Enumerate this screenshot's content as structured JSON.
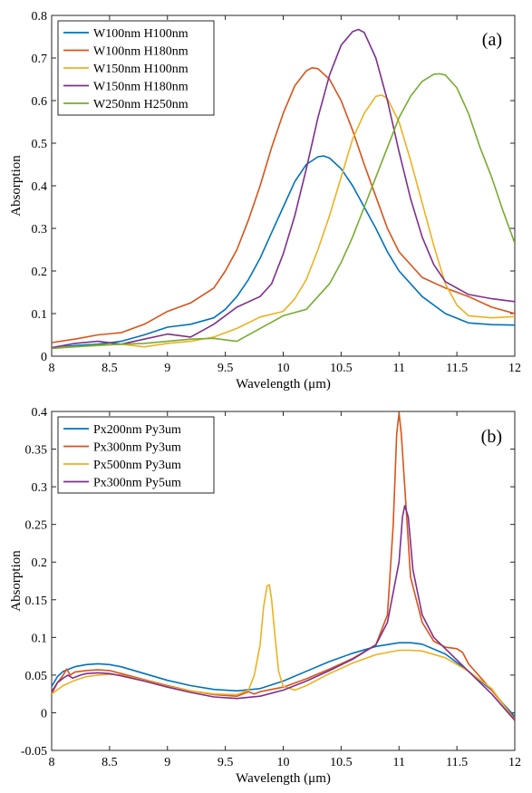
{
  "chart_data": [
    {
      "type": "line",
      "panel_label": "(a)",
      "xlabel": "Wavelength (μm)",
      "ylabel": "Absorption",
      "xlim": [
        8,
        12
      ],
      "ylim": [
        0,
        0.8
      ],
      "xticks": [
        8,
        8.5,
        9,
        9.5,
        10,
        10.5,
        11,
        11.5,
        12
      ],
      "xtick_labels": [
        "8",
        "8.5",
        "9",
        "9.5",
        "10",
        "10.5",
        "11",
        "11.5",
        "12"
      ],
      "yticks": [
        0,
        0.1,
        0.2,
        0.3,
        0.4,
        0.5,
        0.6,
        0.7,
        0.8
      ],
      "ytick_labels": [
        "0",
        "0.1",
        "0.2",
        "0.3",
        "0.4",
        "0.5",
        "0.6",
        "0.7",
        "0.8"
      ],
      "legend_position": "top-left",
      "grid": false,
      "series": [
        {
          "name": "W100nm H100nm",
          "color": "#0072BD",
          "x": [
            8.0,
            8.2,
            8.4,
            8.6,
            8.8,
            9.0,
            9.2,
            9.4,
            9.5,
            9.6,
            9.7,
            9.8,
            9.9,
            10.0,
            10.1,
            10.2,
            10.3,
            10.35,
            10.4,
            10.5,
            10.6,
            10.7,
            10.8,
            10.9,
            11.0,
            11.2,
            11.4,
            11.6,
            11.8,
            12.0
          ],
          "y": [
            0.02,
            0.025,
            0.028,
            0.035,
            0.05,
            0.068,
            0.075,
            0.09,
            0.11,
            0.14,
            0.18,
            0.23,
            0.29,
            0.35,
            0.41,
            0.45,
            0.468,
            0.47,
            0.465,
            0.44,
            0.4,
            0.35,
            0.3,
            0.245,
            0.2,
            0.14,
            0.1,
            0.078,
            0.074,
            0.073
          ]
        },
        {
          "name": "W100nm H180nm",
          "color": "#D95319",
          "x": [
            8.0,
            8.2,
            8.4,
            8.6,
            8.8,
            9.0,
            9.2,
            9.4,
            9.5,
            9.6,
            9.7,
            9.8,
            9.9,
            10.0,
            10.1,
            10.2,
            10.25,
            10.3,
            10.4,
            10.5,
            10.6,
            10.7,
            10.8,
            10.9,
            11.0,
            11.2,
            11.4,
            11.6,
            11.8,
            12.0
          ],
          "y": [
            0.032,
            0.04,
            0.05,
            0.055,
            0.075,
            0.105,
            0.125,
            0.16,
            0.2,
            0.25,
            0.32,
            0.4,
            0.49,
            0.57,
            0.635,
            0.67,
            0.677,
            0.675,
            0.65,
            0.6,
            0.53,
            0.45,
            0.375,
            0.3,
            0.245,
            0.185,
            0.16,
            0.14,
            0.115,
            0.1
          ]
        },
        {
          "name": "W150nm H100nm",
          "color": "#EDB120",
          "x": [
            8.0,
            8.2,
            8.4,
            8.6,
            8.8,
            9.0,
            9.2,
            9.4,
            9.6,
            9.8,
            10.0,
            10.1,
            10.2,
            10.3,
            10.4,
            10.5,
            10.6,
            10.7,
            10.8,
            10.85,
            10.9,
            11.0,
            11.1,
            11.2,
            11.3,
            11.4,
            11.5,
            11.6,
            11.8,
            12.0
          ],
          "y": [
            0.02,
            0.022,
            0.025,
            0.028,
            0.022,
            0.03,
            0.035,
            0.045,
            0.065,
            0.092,
            0.105,
            0.135,
            0.18,
            0.25,
            0.33,
            0.42,
            0.51,
            0.57,
            0.61,
            0.613,
            0.605,
            0.55,
            0.46,
            0.36,
            0.26,
            0.17,
            0.12,
            0.095,
            0.09,
            0.093
          ]
        },
        {
          "name": "W150nm H180nm",
          "color": "#7E2F8E",
          "x": [
            8.0,
            8.2,
            8.4,
            8.6,
            8.8,
            9.0,
            9.2,
            9.4,
            9.6,
            9.8,
            9.9,
            10.0,
            10.1,
            10.2,
            10.3,
            10.4,
            10.5,
            10.6,
            10.65,
            10.7,
            10.8,
            10.9,
            11.0,
            11.1,
            11.2,
            11.3,
            11.4,
            11.6,
            11.8,
            12.0
          ],
          "y": [
            0.02,
            0.03,
            0.035,
            0.028,
            0.04,
            0.052,
            0.045,
            0.075,
            0.115,
            0.14,
            0.17,
            0.24,
            0.33,
            0.44,
            0.56,
            0.66,
            0.73,
            0.762,
            0.767,
            0.76,
            0.7,
            0.6,
            0.48,
            0.37,
            0.28,
            0.215,
            0.175,
            0.145,
            0.135,
            0.128
          ]
        },
        {
          "name": "W250nm H250nm",
          "color": "#77AC30",
          "x": [
            8.0,
            8.2,
            8.4,
            8.6,
            8.8,
            9.0,
            9.2,
            9.4,
            9.6,
            9.8,
            10.0,
            10.2,
            10.4,
            10.5,
            10.6,
            10.7,
            10.8,
            10.9,
            11.0,
            11.1,
            11.2,
            11.3,
            11.35,
            11.4,
            11.5,
            11.6,
            11.7,
            11.8,
            11.9,
            12.0
          ],
          "y": [
            0.018,
            0.022,
            0.026,
            0.028,
            0.03,
            0.035,
            0.04,
            0.042,
            0.035,
            0.065,
            0.095,
            0.11,
            0.17,
            0.22,
            0.28,
            0.35,
            0.42,
            0.49,
            0.56,
            0.61,
            0.645,
            0.662,
            0.663,
            0.66,
            0.63,
            0.57,
            0.49,
            0.42,
            0.34,
            0.265
          ]
        }
      ]
    },
    {
      "type": "line",
      "panel_label": "(b)",
      "xlabel": "Wavelength (μm)",
      "ylabel": "Absorption",
      "xlim": [
        8,
        12
      ],
      "ylim": [
        -0.05,
        0.4
      ],
      "xticks": [
        8,
        8.5,
        9,
        9.5,
        10,
        10.5,
        11,
        11.5,
        12
      ],
      "xtick_labels": [
        "8",
        "8.5",
        "9",
        "9.5",
        "10",
        "10.5",
        "11",
        "11.5",
        "12"
      ],
      "yticks": [
        -0.05,
        0,
        0.05,
        0.1,
        0.15,
        0.2,
        0.25,
        0.3,
        0.35,
        0.4
      ],
      "ytick_labels": [
        "-0.05",
        "0",
        "0.05",
        "0.1",
        "0.15",
        "0.2",
        "0.25",
        "0.3",
        "0.35",
        "0.4"
      ],
      "legend_position": "top-left",
      "grid": false,
      "series": [
        {
          "name": "Px200nm Py3um",
          "color": "#0072BD",
          "x": [
            8.0,
            8.05,
            8.1,
            8.2,
            8.3,
            8.4,
            8.5,
            8.6,
            8.8,
            9.0,
            9.2,
            9.4,
            9.6,
            9.8,
            10.0,
            10.2,
            10.4,
            10.6,
            10.8,
            11.0,
            11.1,
            11.2,
            11.4,
            11.6,
            11.8,
            11.9,
            12.0
          ],
          "y": [
            0.035,
            0.048,
            0.055,
            0.061,
            0.064,
            0.065,
            0.064,
            0.061,
            0.052,
            0.043,
            0.036,
            0.031,
            0.029,
            0.032,
            0.042,
            0.055,
            0.068,
            0.079,
            0.088,
            0.093,
            0.093,
            0.091,
            0.078,
            0.055,
            0.03,
            0.012,
            -0.005
          ]
        },
        {
          "name": "Px300nm Py3um",
          "color": "#D95319",
          "x": [
            8.0,
            8.05,
            8.1,
            8.13,
            8.16,
            8.2,
            8.3,
            8.4,
            8.5,
            8.6,
            8.8,
            9.0,
            9.2,
            9.4,
            9.6,
            9.7,
            9.75,
            9.8,
            10.0,
            10.2,
            10.4,
            10.6,
            10.8,
            10.9,
            10.95,
            10.98,
            11.0,
            11.02,
            11.05,
            11.1,
            11.2,
            11.3,
            11.4,
            11.5,
            11.55,
            11.6,
            11.8,
            12.0
          ],
          "y": [
            0.025,
            0.04,
            0.05,
            0.058,
            0.05,
            0.054,
            0.056,
            0.057,
            0.056,
            0.052,
            0.044,
            0.036,
            0.029,
            0.024,
            0.022,
            0.028,
            0.025,
            0.028,
            0.034,
            0.045,
            0.058,
            0.072,
            0.09,
            0.13,
            0.25,
            0.37,
            0.398,
            0.37,
            0.3,
            0.18,
            0.12,
            0.095,
            0.087,
            0.085,
            0.08,
            0.065,
            0.03,
            -0.008
          ]
        },
        {
          "name": "Px500nm Py3um",
          "color": "#EDB120",
          "x": [
            8.0,
            8.1,
            8.2,
            8.3,
            8.4,
            8.5,
            8.6,
            8.8,
            9.0,
            9.2,
            9.4,
            9.6,
            9.7,
            9.75,
            9.8,
            9.83,
            9.86,
            9.88,
            9.9,
            9.93,
            9.96,
            10.0,
            10.1,
            10.2,
            10.4,
            10.6,
            10.8,
            11.0,
            11.1,
            11.2,
            11.4,
            11.6,
            11.8,
            12.0
          ],
          "y": [
            0.025,
            0.036,
            0.043,
            0.048,
            0.05,
            0.051,
            0.05,
            0.043,
            0.035,
            0.029,
            0.025,
            0.024,
            0.03,
            0.05,
            0.09,
            0.14,
            0.168,
            0.17,
            0.15,
            0.1,
            0.055,
            0.035,
            0.03,
            0.036,
            0.052,
            0.066,
            0.077,
            0.083,
            0.083,
            0.082,
            0.073,
            0.055,
            0.032,
            -0.01
          ]
        },
        {
          "name": "Px300nm Py5um",
          "color": "#7E2F8E",
          "x": [
            8.0,
            8.05,
            8.1,
            8.14,
            8.18,
            8.25,
            8.3,
            8.4,
            8.5,
            8.6,
            8.8,
            9.0,
            9.2,
            9.4,
            9.6,
            9.8,
            10.0,
            10.2,
            10.4,
            10.6,
            10.8,
            10.9,
            10.95,
            11.0,
            11.03,
            11.05,
            11.08,
            11.12,
            11.2,
            11.3,
            11.4,
            11.6,
            11.8,
            12.0
          ],
          "y": [
            0.028,
            0.04,
            0.046,
            0.05,
            0.046,
            0.05,
            0.052,
            0.053,
            0.052,
            0.049,
            0.042,
            0.034,
            0.027,
            0.021,
            0.019,
            0.022,
            0.03,
            0.042,
            0.056,
            0.071,
            0.09,
            0.12,
            0.16,
            0.2,
            0.26,
            0.275,
            0.26,
            0.19,
            0.13,
            0.1,
            0.085,
            0.055,
            0.025,
            -0.01
          ]
        }
      ]
    }
  ]
}
